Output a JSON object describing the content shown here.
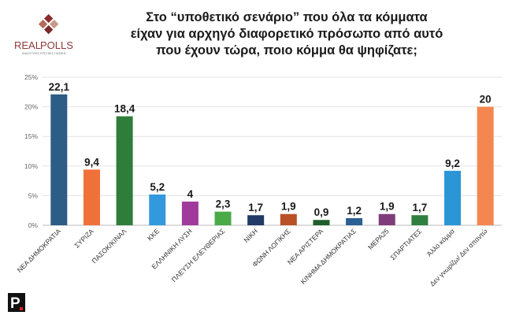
{
  "header": {
    "title_lines": [
      "Στο “υποθετικό σενάριο” που όλα τα κόμματα",
      "είχαν για αρχηγό διαφορετικό πρόσωπο από αυτό",
      "που έχουν τώρα, ποιο κόμμα θα ψηφίζατε;"
    ]
  },
  "logo": {
    "text_a": "REAL",
    "text_b": "POLLS",
    "tagline": "ΑΝΑΛΥΤΙΚΕΣ ΕΡΕΥΝΕΣ ΓΝΩΜΗΣ",
    "badge": "P"
  },
  "chart_data": {
    "type": "bar",
    "categories": [
      "ΝΕΑ ΔΗΜΟΚΡΑΤΙΑ",
      "ΣΥΡΙΖΑ",
      "ΠΑΣΟΚ/ΚΙΝΑΛ",
      "ΚΚΕ",
      "ΕΛΛΗΝΙΚΗ ΛΥΣΗ",
      "ΠΛΕΥΣΗ ΕΛΕΥΘΕΡΙΑΣ",
      "ΝΙΚΗ",
      "ΦΩΝΗ ΛΟΓΙΚΗΣ",
      "ΝΕΑ ΑΡΙΣΤΕΡΑ",
      "ΚΙΝΗΜΑ ΔΗΜΟΚΡΑΤΙΑΣ",
      "ΜΕΡΑ25",
      "ΣΠΑΡΤΙΑΤΕΣ",
      "Άλλο κόμμα",
      "Δεν γνωρίζω/ Δεν απαντώ"
    ],
    "values": [
      22.1,
      9.4,
      18.4,
      5.2,
      4,
      2.3,
      1.7,
      1.9,
      0.9,
      1.2,
      1.9,
      1.7,
      9.2,
      20
    ],
    "value_labels": [
      "22,1",
      "9,4",
      "18,4",
      "5,2",
      "4",
      "2,3",
      "1,7",
      "1,9",
      "0,9",
      "1,2",
      "1,9",
      "1,7",
      "9,2",
      "20"
    ],
    "colors": [
      "#2d5c86",
      "#f0703a",
      "#2e7d3a",
      "#3398dc",
      "#a03a9c",
      "#4aaa48",
      "#223a66",
      "#b85226",
      "#1f5e2a",
      "#2c5f92",
      "#7f3c7a",
      "#2f7f3f",
      "#2b95d6",
      "#f3874f"
    ],
    "y_ticks": [
      "0%",
      "5%",
      "10%",
      "15%",
      "20%",
      "25%"
    ],
    "ylim": [
      0,
      25
    ],
    "grid": true,
    "xlabel": "",
    "ylabel": ""
  }
}
